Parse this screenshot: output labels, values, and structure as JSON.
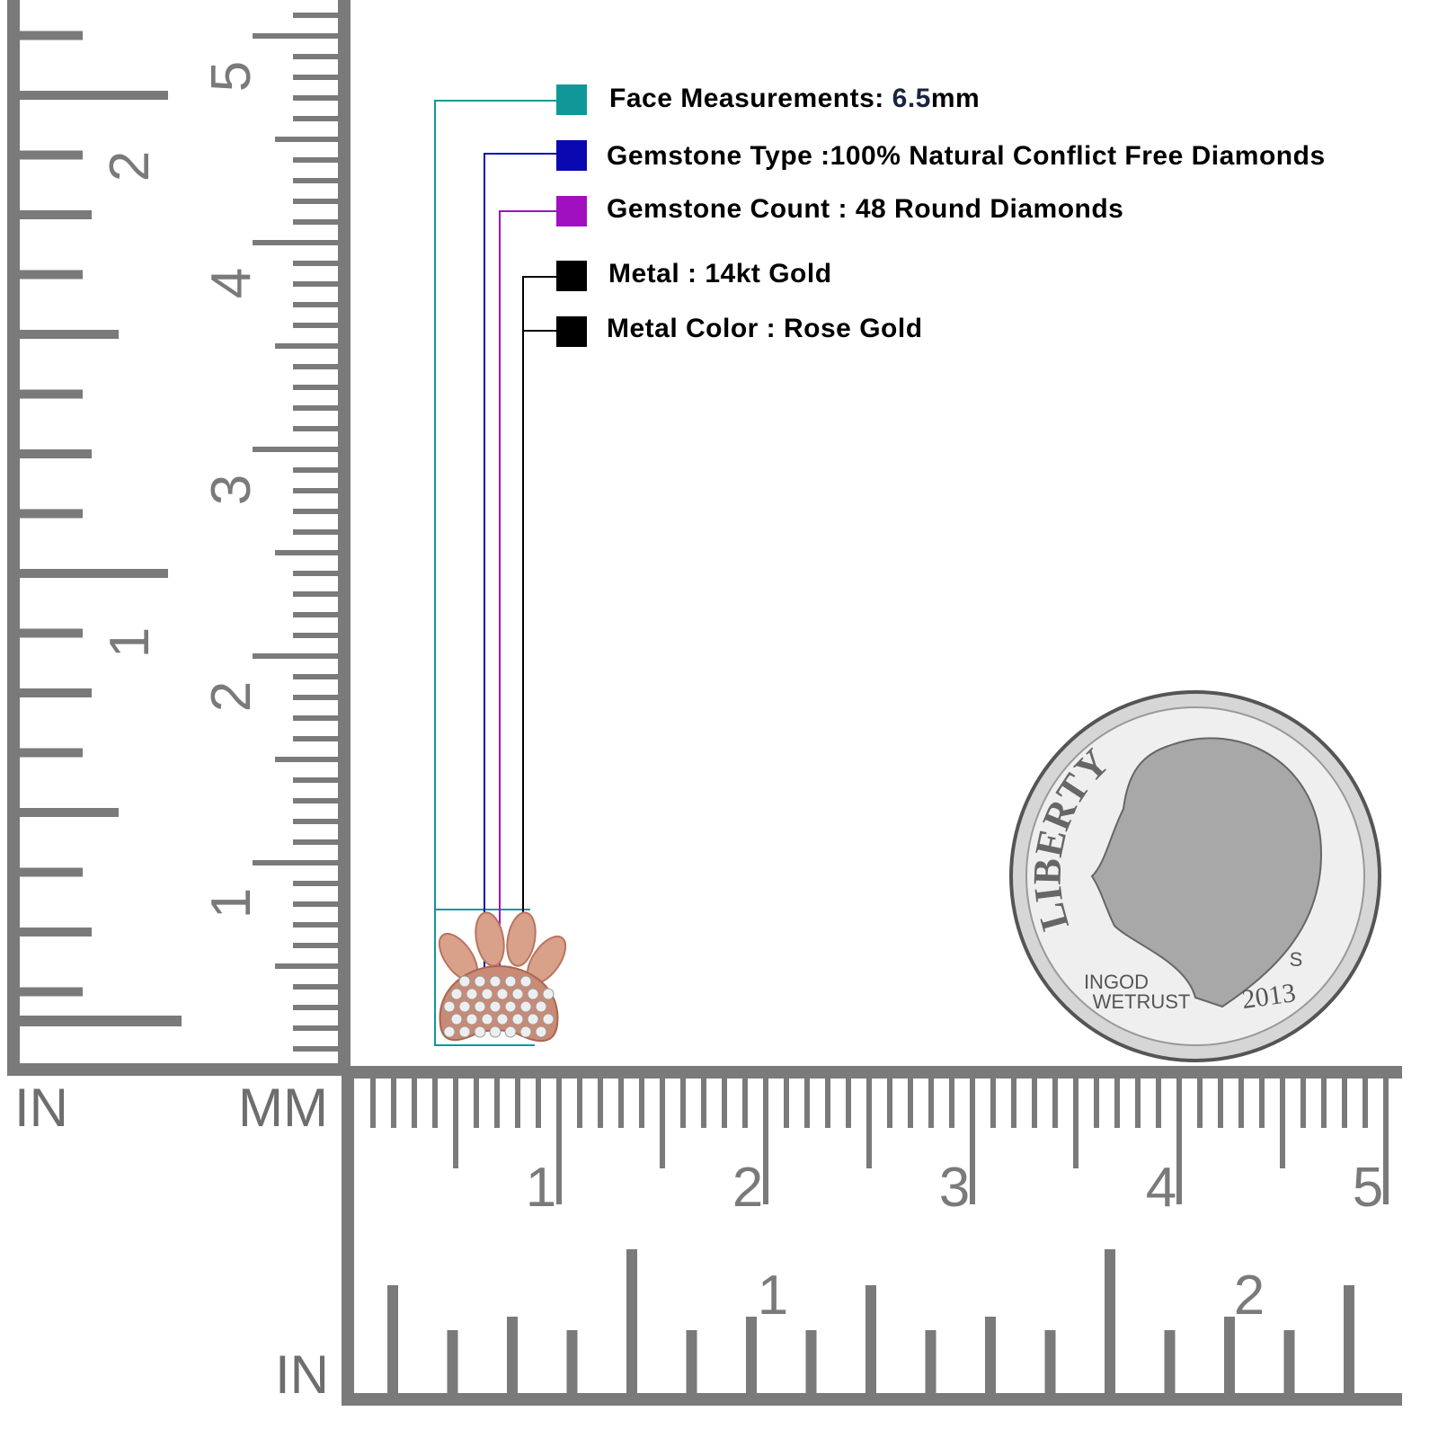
{
  "specs": [
    {
      "label": "Face Measurements: ",
      "value": "6.5",
      "suffix": "mm",
      "color": "#109898"
    },
    {
      "label": "Gemstone Type :100% Natural Conflict Free Diamonds",
      "color": "#0a08b0"
    },
    {
      "label": "Gemstone Count : 48 Round Diamonds",
      "color": "#a010c0"
    },
    {
      "label": "Metal : 14kt Gold",
      "color": "#000000"
    },
    {
      "label": "Metal Color : Rose Gold",
      "color": "#000000"
    }
  ],
  "rulers": {
    "left_in_label": "IN",
    "left_mm_label": "MM",
    "bottom_in_label": "IN",
    "left_inch_numbers": [
      "1",
      "2"
    ],
    "left_cm_numbers": [
      "1",
      "2",
      "3",
      "4",
      "5"
    ],
    "bottom_cm_numbers": [
      "1",
      "2",
      "3",
      "4",
      "5"
    ],
    "bottom_inch_numbers": [
      "1",
      "2"
    ],
    "color": "#7a7a7a"
  },
  "coin": {
    "legend": "LIBERTY",
    "motto": "IN GOD WE TRUST",
    "year": "2013",
    "mint": "S"
  },
  "product": {
    "metal_color": "#d9a08a",
    "name_icon": "paw-pendant"
  }
}
